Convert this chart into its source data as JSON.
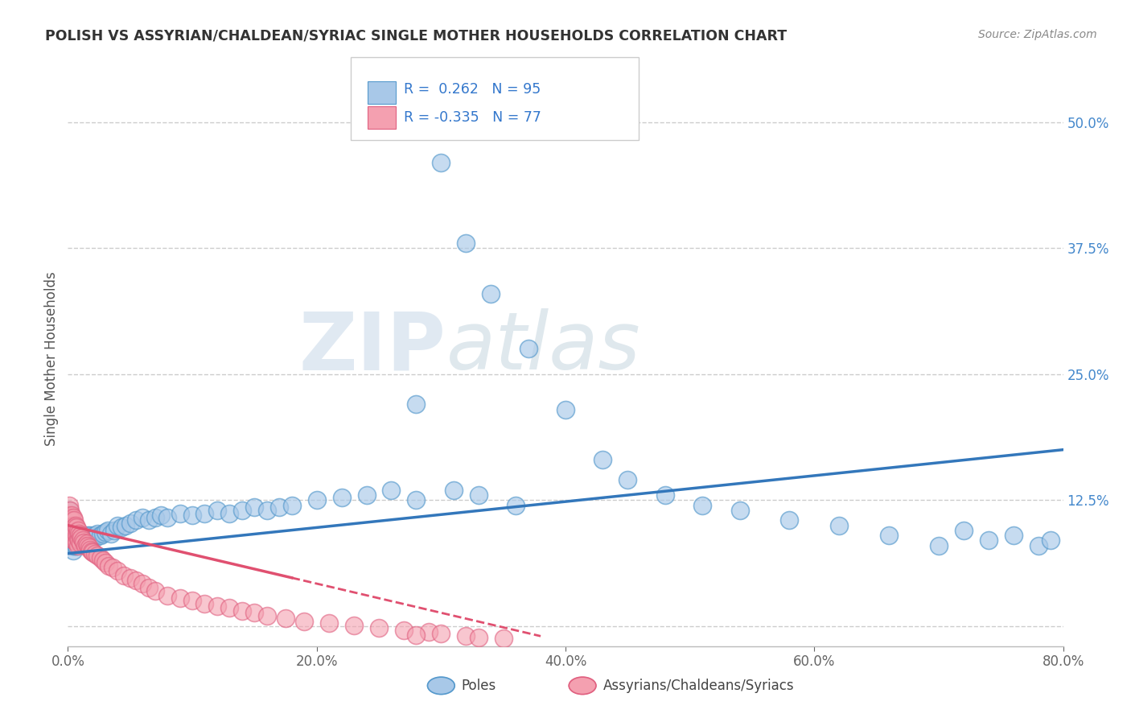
{
  "title": "POLISH VS ASSYRIAN/CHALDEAN/SYRIAC SINGLE MOTHER HOUSEHOLDS CORRELATION CHART",
  "source": "Source: ZipAtlas.com",
  "ylabel": "Single Mother Households",
  "xlim": [
    0,
    0.8
  ],
  "ylim": [
    -0.02,
    0.55
  ],
  "xticks": [
    0.0,
    0.2,
    0.4,
    0.6,
    0.8
  ],
  "xticklabels": [
    "0.0%",
    "20.0%",
    "40.0%",
    "60.0%",
    "80.0%"
  ],
  "yticks": [
    0.0,
    0.125,
    0.25,
    0.375,
    0.5
  ],
  "yticklabels": [
    "",
    "12.5%",
    "25.0%",
    "37.5%",
    "50.0%"
  ],
  "watermark_zip": "ZIP",
  "watermark_atlas": "atlas",
  "color_blue": "#a8c8e8",
  "color_blue_edge": "#5599cc",
  "color_pink": "#f4a0b0",
  "color_pink_edge": "#e06080",
  "color_blue_line": "#3377bb",
  "color_pink_line": "#e05070",
  "background": "#ffffff",
  "grid_color": "#cccccc",
  "blue_line_x0": 0.0,
  "blue_line_y0": 0.072,
  "blue_line_x1": 0.8,
  "blue_line_y1": 0.175,
  "pink_line_x0": 0.0,
  "pink_line_y0": 0.1,
  "pink_line_x1": 0.38,
  "pink_line_y1": -0.01,
  "poles_x": [
    0.001,
    0.001,
    0.002,
    0.002,
    0.002,
    0.003,
    0.003,
    0.003,
    0.003,
    0.004,
    0.004,
    0.004,
    0.004,
    0.005,
    0.005,
    0.005,
    0.006,
    0.006,
    0.006,
    0.007,
    0.007,
    0.007,
    0.008,
    0.008,
    0.009,
    0.009,
    0.01,
    0.01,
    0.011,
    0.011,
    0.012,
    0.013,
    0.014,
    0.015,
    0.016,
    0.017,
    0.018,
    0.02,
    0.021,
    0.022,
    0.024,
    0.026,
    0.028,
    0.03,
    0.032,
    0.035,
    0.037,
    0.04,
    0.043,
    0.046,
    0.05,
    0.055,
    0.06,
    0.065,
    0.07,
    0.075,
    0.08,
    0.09,
    0.1,
    0.11,
    0.12,
    0.13,
    0.14,
    0.15,
    0.16,
    0.17,
    0.18,
    0.2,
    0.22,
    0.24,
    0.26,
    0.28,
    0.3,
    0.32,
    0.34,
    0.37,
    0.4,
    0.43,
    0.45,
    0.48,
    0.51,
    0.54,
    0.58,
    0.62,
    0.66,
    0.7,
    0.72,
    0.74,
    0.76,
    0.78,
    0.79,
    0.31,
    0.33,
    0.28,
    0.36
  ],
  "poles_y": [
    0.115,
    0.105,
    0.095,
    0.1,
    0.09,
    0.095,
    0.09,
    0.085,
    0.08,
    0.095,
    0.085,
    0.08,
    0.075,
    0.09,
    0.085,
    0.08,
    0.09,
    0.085,
    0.08,
    0.09,
    0.085,
    0.08,
    0.09,
    0.085,
    0.088,
    0.083,
    0.09,
    0.083,
    0.09,
    0.085,
    0.088,
    0.09,
    0.085,
    0.088,
    0.09,
    0.085,
    0.09,
    0.088,
    0.09,
    0.088,
    0.092,
    0.09,
    0.092,
    0.093,
    0.095,
    0.092,
    0.095,
    0.1,
    0.098,
    0.1,
    0.102,
    0.105,
    0.108,
    0.105,
    0.108,
    0.11,
    0.108,
    0.112,
    0.11,
    0.112,
    0.115,
    0.112,
    0.115,
    0.118,
    0.115,
    0.118,
    0.12,
    0.125,
    0.128,
    0.13,
    0.135,
    0.22,
    0.46,
    0.38,
    0.33,
    0.275,
    0.215,
    0.165,
    0.145,
    0.13,
    0.12,
    0.115,
    0.105,
    0.1,
    0.09,
    0.08,
    0.095,
    0.085,
    0.09,
    0.08,
    0.085,
    0.135,
    0.13,
    0.125,
    0.12
  ],
  "assy_x": [
    0.001,
    0.001,
    0.001,
    0.002,
    0.002,
    0.002,
    0.002,
    0.003,
    0.003,
    0.003,
    0.003,
    0.004,
    0.004,
    0.004,
    0.004,
    0.005,
    0.005,
    0.005,
    0.005,
    0.006,
    0.006,
    0.006,
    0.007,
    0.007,
    0.007,
    0.008,
    0.008,
    0.008,
    0.009,
    0.009,
    0.01,
    0.01,
    0.011,
    0.012,
    0.013,
    0.014,
    0.015,
    0.016,
    0.017,
    0.018,
    0.019,
    0.02,
    0.022,
    0.024,
    0.026,
    0.028,
    0.03,
    0.033,
    0.036,
    0.04,
    0.045,
    0.05,
    0.055,
    0.06,
    0.065,
    0.07,
    0.08,
    0.09,
    0.1,
    0.11,
    0.12,
    0.13,
    0.14,
    0.15,
    0.16,
    0.175,
    0.19,
    0.21,
    0.23,
    0.25,
    0.27,
    0.29,
    0.32,
    0.35,
    0.3,
    0.28,
    0.33
  ],
  "assy_y": [
    0.12,
    0.11,
    0.1,
    0.115,
    0.108,
    0.1,
    0.095,
    0.11,
    0.105,
    0.098,
    0.09,
    0.108,
    0.1,
    0.092,
    0.085,
    0.105,
    0.098,
    0.092,
    0.085,
    0.1,
    0.093,
    0.086,
    0.098,
    0.09,
    0.083,
    0.095,
    0.088,
    0.08,
    0.092,
    0.085,
    0.09,
    0.082,
    0.088,
    0.085,
    0.083,
    0.08,
    0.082,
    0.08,
    0.078,
    0.076,
    0.074,
    0.073,
    0.072,
    0.07,
    0.068,
    0.065,
    0.063,
    0.06,
    0.058,
    0.055,
    0.05,
    0.048,
    0.045,
    0.042,
    0.038,
    0.035,
    0.03,
    0.028,
    0.025,
    0.022,
    0.02,
    0.018,
    0.015,
    0.013,
    0.01,
    0.008,
    0.005,
    0.003,
    0.001,
    -0.002,
    -0.004,
    -0.006,
    -0.01,
    -0.012,
    -0.007,
    -0.009,
    -0.011
  ]
}
